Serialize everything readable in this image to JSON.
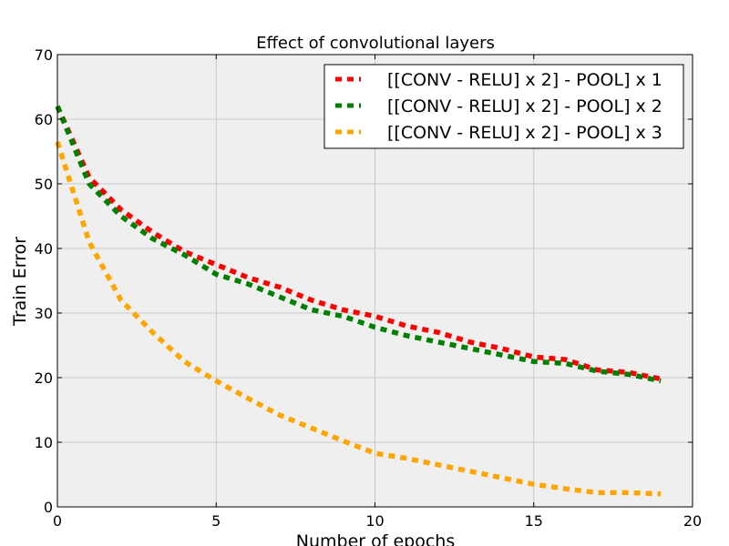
{
  "chart_data": {
    "type": "line",
    "title": "Effect of convolutional layers",
    "xlabel": "Number of epochs",
    "ylabel": "Train Error",
    "xlim": [
      0,
      20
    ],
    "ylim": [
      0,
      70
    ],
    "xticks": [
      0,
      5,
      10,
      15,
      20
    ],
    "yticks": [
      0,
      10,
      20,
      30,
      40,
      50,
      60,
      70
    ],
    "grid": true,
    "legend_position": "top-right",
    "x": [
      0,
      1,
      2,
      3,
      4,
      5,
      6,
      7,
      8,
      9,
      10,
      11,
      12,
      13,
      14,
      15,
      16,
      17,
      18,
      19
    ],
    "series": [
      {
        "name": "[[CONV - RELU] x 2] - POOL] x 1",
        "color": "#ff0000",
        "values": [
          62,
          51,
          46,
          42.5,
          39.5,
          37.5,
          35.5,
          34,
          32,
          30.5,
          29.5,
          28,
          27,
          25.5,
          24.5,
          23.2,
          22.8,
          21.2,
          20.8,
          19.8
        ]
      },
      {
        "name": "[[CONV - RELU] x 2] - POOL] x 2",
        "color": "#008000",
        "values": [
          62,
          50,
          45,
          41.5,
          39,
          36,
          34.5,
          32.5,
          30.5,
          29.5,
          27.8,
          26.5,
          25.5,
          24.5,
          23.5,
          22.5,
          22.2,
          21,
          20.5,
          19.5
        ]
      },
      {
        "name": "[[CONV - RELU] x 2] - POOL] x 3",
        "color": "#ffa500",
        "values": [
          56.5,
          41,
          32,
          27,
          22.5,
          19.5,
          16.8,
          14.2,
          12.2,
          10.2,
          8.3,
          7.5,
          6.5,
          5.5,
          4.5,
          3.5,
          2.8,
          2.2,
          2.2,
          2
        ]
      }
    ],
    "colors": {
      "plot_background": "#efefef",
      "grid": "#c8c8c8"
    }
  }
}
